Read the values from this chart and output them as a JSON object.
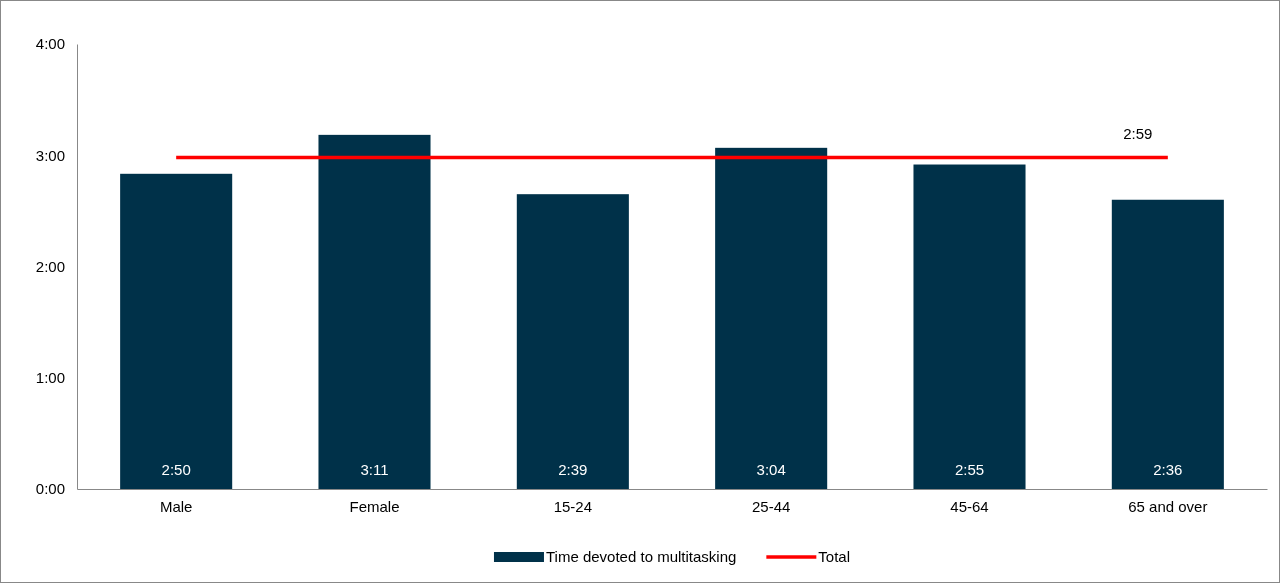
{
  "chart_data": {
    "type": "bar",
    "categories": [
      "Male",
      "Female",
      "15-24",
      "25-44",
      "45-64",
      "65 and over"
    ],
    "series": [
      {
        "name": "Time devoted to multitasking",
        "color": "#003149",
        "values": [
          2.8333,
          3.1833,
          2.65,
          3.0667,
          2.9167,
          2.6
        ],
        "value_labels": [
          "2:50",
          "3:11",
          "2:39",
          "3:04",
          "2:55",
          "2:36"
        ]
      },
      {
        "name": "Total",
        "type": "line",
        "color": "#ff0000",
        "values": [
          2.98,
          2.98,
          2.98,
          2.98,
          2.98,
          2.98
        ],
        "value_labels": [
          null,
          null,
          null,
          null,
          null,
          "2:59"
        ]
      }
    ],
    "ylim": [
      0,
      4
    ],
    "yticks": [
      {
        "value": 0,
        "label": "0:00"
      },
      {
        "value": 1,
        "label": "1:00"
      },
      {
        "value": 2,
        "label": "2:00"
      },
      {
        "value": 3,
        "label": "3:00"
      },
      {
        "value": 4,
        "label": "4:00"
      }
    ],
    "legend": "bottom",
    "grid": false
  }
}
